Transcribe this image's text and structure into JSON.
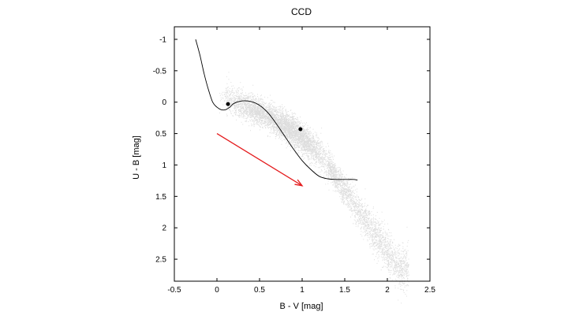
{
  "chart_data": {
    "type": "scatter",
    "title": "CCD",
    "xlabel": "B - V [mag]",
    "ylabel": "U - B [mag]",
    "xlim": [
      -0.5,
      2.5
    ],
    "ylim": [
      2.85,
      -1.2
    ],
    "y_inverted": true,
    "xticks": [
      -0.5,
      0,
      0.5,
      1,
      1.5,
      2,
      2.5
    ],
    "xtick_labels": [
      "-0.5",
      "0",
      "0.5",
      "1",
      "1.5",
      "2",
      "2.5"
    ],
    "yticks": [
      -1,
      -0.5,
      0,
      0.5,
      1,
      1.5,
      2,
      2.5
    ],
    "ytick_labels": [
      "-1",
      "-0.5",
      "0",
      "0.5",
      "1",
      "1.5",
      "2",
      "2.5"
    ],
    "grid": false,
    "legend": false,
    "colors": {
      "scatter": "#b4b4b4",
      "curve": "#000000",
      "arrow": "#e41a1c",
      "points": "#000000"
    },
    "scatter_cloud": {
      "description_note": "dense gray cloud of stars",
      "ridge": [
        {
          "x": 0.15,
          "y": -0.05
        },
        {
          "x": 0.5,
          "y": 0.15
        },
        {
          "x": 0.9,
          "y": 0.45
        },
        {
          "x": 1.2,
          "y": 0.8
        },
        {
          "x": 1.5,
          "y": 1.4
        },
        {
          "x": 1.8,
          "y": 2.0
        },
        {
          "x": 2.15,
          "y": 2.65
        }
      ]
    },
    "intrinsic_curve": {
      "x": [
        -0.25,
        -0.2,
        -0.15,
        -0.1,
        -0.05,
        0.0,
        0.05,
        0.1,
        0.15,
        0.2,
        0.3,
        0.4,
        0.5,
        0.6,
        0.7,
        0.8,
        0.9,
        1.0,
        1.1,
        1.2,
        1.3,
        1.4,
        1.5,
        1.6,
        1.65
      ],
      "y": [
        -1.0,
        -0.75,
        -0.45,
        -0.2,
        0.0,
        0.08,
        0.12,
        0.12,
        0.08,
        0.02,
        -0.02,
        -0.01,
        0.05,
        0.17,
        0.35,
        0.55,
        0.75,
        0.93,
        1.07,
        1.18,
        1.22,
        1.23,
        1.23,
        1.23,
        1.24
      ]
    },
    "highlighted_points": [
      {
        "x": 0.13,
        "y": 0.03
      },
      {
        "x": 0.98,
        "y": 0.43
      }
    ],
    "reddening_vector": {
      "x0": 0.0,
      "y0": 0.5,
      "x1": 1.0,
      "y1": 1.33
    }
  }
}
